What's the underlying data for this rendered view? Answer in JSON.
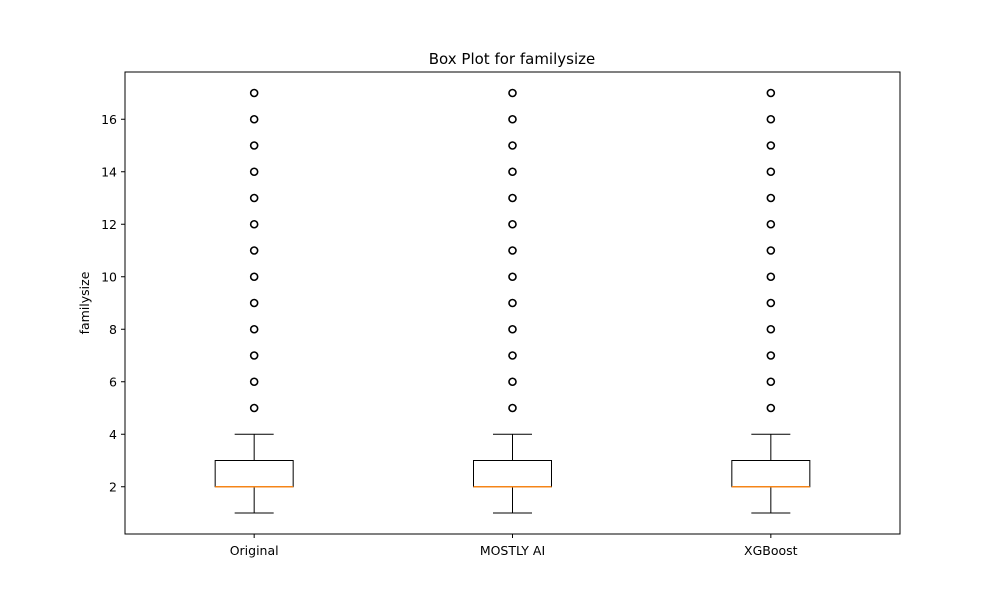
{
  "chart_data": {
    "type": "box",
    "title": "Box Plot for familysize",
    "xlabel": "",
    "ylabel": "familysize",
    "ylim": [
      0.2,
      17.8
    ],
    "yticks": [
      2,
      4,
      6,
      8,
      10,
      12,
      14,
      16
    ],
    "grid": false,
    "categories": [
      "Original",
      "MOSTLY AI",
      "XGBoost"
    ],
    "boxes": [
      {
        "category": "Original",
        "whisker_low": 1,
        "q1": 2,
        "median": 2,
        "q3": 3,
        "whisker_high": 4,
        "outliers": [
          5,
          6,
          7,
          8,
          9,
          10,
          11,
          12,
          13,
          14,
          15,
          16,
          17
        ]
      },
      {
        "category": "MOSTLY AI",
        "whisker_low": 1,
        "q1": 2,
        "median": 2,
        "q3": 3,
        "whisker_high": 4,
        "outliers": [
          5,
          6,
          7,
          8,
          9,
          10,
          11,
          12,
          13,
          14,
          15,
          16,
          17
        ]
      },
      {
        "category": "XGBoost",
        "whisker_low": 1,
        "q1": 2,
        "median": 2,
        "q3": 3,
        "whisker_high": 4,
        "outliers": [
          5,
          6,
          7,
          8,
          9,
          10,
          11,
          12,
          13,
          14,
          15,
          16,
          17
        ]
      }
    ],
    "colors": {
      "box": "#000000",
      "median": "#f58518",
      "outlier": "#000000"
    }
  }
}
